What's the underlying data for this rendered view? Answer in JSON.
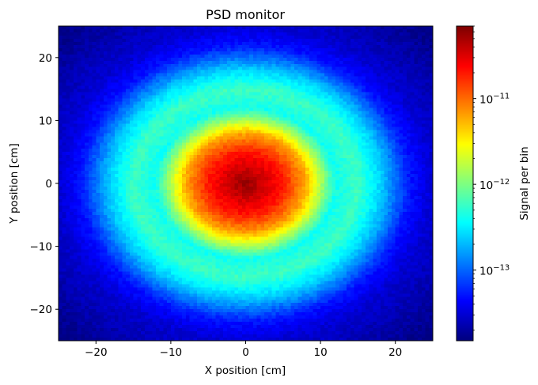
{
  "chart_data": {
    "type": "heatmap",
    "title": "PSD monitor",
    "xlabel": "X position [cm]",
    "ylabel": "Y position [cm]",
    "xlim": [
      -25,
      25
    ],
    "ylim": [
      -25,
      25
    ],
    "xticks": [
      -20,
      -10,
      0,
      10,
      20
    ],
    "yticks": [
      -20,
      -10,
      0,
      10,
      20
    ],
    "xtick_labels": [
      "−20",
      "−10",
      "0",
      "10",
      "20"
    ],
    "ytick_labels": [
      "−20",
      "−10",
      "0",
      "10",
      "20"
    ],
    "grid": false,
    "colormap": "jet",
    "bins": [
      100,
      100
    ],
    "colorbar": {
      "label": "Signal per bin",
      "scale": "log",
      "vmin": 1.5e-14,
      "vmax": 7e-11,
      "ticks": [
        1e-13,
        1e-12,
        1e-11
      ],
      "tick_labels": [
        "10",
        "10",
        "10"
      ],
      "tick_exponents": [
        "−13",
        "−12",
        "−11"
      ]
    },
    "distribution": {
      "description_values": {
        "center": [
          0,
          0
        ],
        "peak_value": 7e-11,
        "value_at_radius": [
          {
            "r": 0,
            "value": 6e-11
          },
          {
            "r": 5,
            "value": 2e-11
          },
          {
            "r": 8,
            "value": 6e-12
          },
          {
            "r": 10,
            "value": 1.5e-12
          },
          {
            "r": 12,
            "value": 4e-13
          },
          {
            "r": 15,
            "value": 6e-13
          },
          {
            "r": 18,
            "value": 2.5e-13
          },
          {
            "r": 22,
            "value": 5e-14
          },
          {
            "r": 25,
            "value": 3e-14
          },
          {
            "r": 35,
            "value": 1.5e-14
          }
        ]
      }
    }
  }
}
